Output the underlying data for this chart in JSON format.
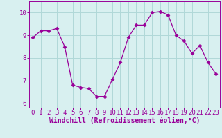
{
  "x": [
    0,
    1,
    2,
    3,
    4,
    5,
    6,
    7,
    8,
    9,
    10,
    11,
    12,
    13,
    14,
    15,
    16,
    17,
    18,
    19,
    20,
    21,
    22,
    23
  ],
  "y": [
    8.9,
    9.2,
    9.2,
    9.3,
    8.5,
    6.8,
    6.7,
    6.65,
    6.3,
    6.3,
    7.05,
    7.8,
    8.9,
    9.45,
    9.45,
    10.0,
    10.05,
    9.9,
    9.0,
    8.75,
    8.2,
    8.55,
    7.8,
    7.3
  ],
  "line_color": "#990099",
  "marker": "D",
  "marker_size": 2.5,
  "bg_color": "#d8f0f0",
  "grid_color": "#b0d8d8",
  "xlabel": "Windchill (Refroidissement éolien,°C)",
  "ylim": [
    5.8,
    10.5
  ],
  "xlim": [
    -0.5,
    23.5
  ],
  "yticks": [
    6,
    7,
    8,
    9,
    10
  ],
  "xticks": [
    0,
    1,
    2,
    3,
    4,
    5,
    6,
    7,
    8,
    9,
    10,
    11,
    12,
    13,
    14,
    15,
    16,
    17,
    18,
    19,
    20,
    21,
    22,
    23
  ],
  "tick_color": "#990099",
  "label_color": "#990099",
  "tick_fontsize": 6.5,
  "xlabel_fontsize": 7
}
